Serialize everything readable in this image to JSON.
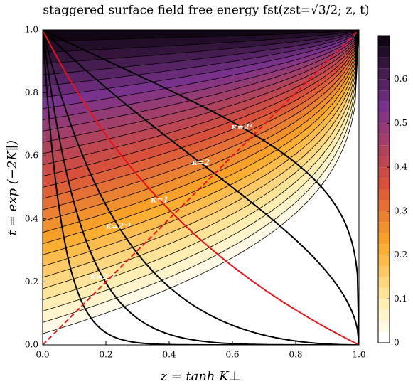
{
  "chart_data": {
    "type": "contour",
    "title": "staggered surface field free energy fst(zst=√3/2; z, t)",
    "xlabel": "z = tanh K⊥",
    "ylabel": "t = exp (−2K∥)",
    "xlim": [
      0,
      1
    ],
    "ylim": [
      0,
      1
    ],
    "xticks": [
      {
        "value": 0,
        "label": "0.0"
      },
      0.2,
      0.4,
      0.6,
      0.8,
      {
        "value": 1,
        "label": "1.0"
      }
    ],
    "yticks": [
      {
        "value": 0,
        "label": "0.0"
      },
      0.2,
      0.4,
      0.6,
      0.8,
      {
        "value": 1,
        "label": "1.0"
      }
    ],
    "clim": [
      0,
      0.7
    ],
    "cticks": [
      0,
      0.1,
      0.2,
      0.3,
      0.4,
      0.5,
      0.6
    ],
    "levels": [
      0.025,
      0.05,
      0.075,
      0.1,
      0.125,
      0.15,
      0.175,
      0.2,
      0.225,
      0.25,
      0.275,
      0.3,
      0.325,
      0.35,
      0.375,
      0.4,
      0.425,
      0.45,
      0.475,
      0.5,
      0.525,
      0.55,
      0.575,
      0.6,
      0.625,
      0.65,
      0.675
    ],
    "kappa": [
      0.125,
      0.25,
      0.5,
      1,
      2,
      4
    ],
    "kappa_labels": [
      null,
      "κ=2⁻²",
      "κ=2⁻¹",
      "κ=1",
      "κ=2",
      "κ=2²"
    ],
    "highlight_color": "#e8131a"
  }
}
